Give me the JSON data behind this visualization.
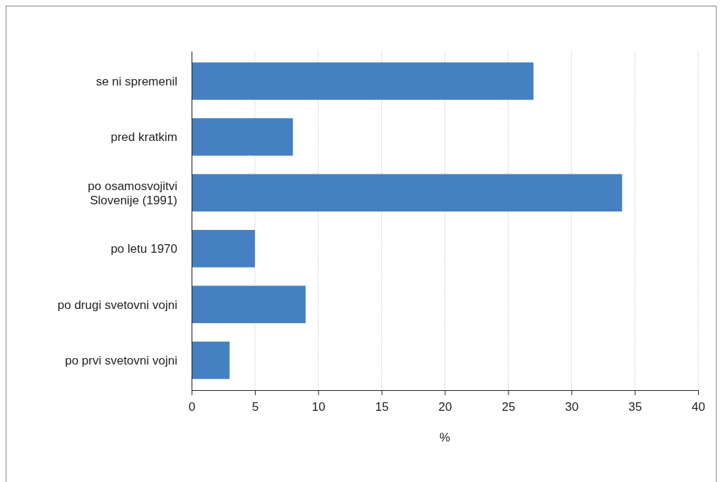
{
  "chart_data": {
    "type": "bar",
    "orientation": "horizontal",
    "xlabel": "%",
    "categories": [
      "se ni spremenil",
      "pred kratkim",
      "po osamosvojitvi\nSlovenije (1991)",
      "po letu 1970",
      "po drugi svetovni vojni",
      "po prvi svetovni vojni"
    ],
    "values": [
      27,
      8,
      34,
      5,
      9,
      3
    ],
    "color": "#4480c2",
    "xlim": [
      0,
      40
    ],
    "xticks": [
      0,
      5,
      10,
      15,
      20,
      25,
      30,
      35,
      40
    ],
    "grid": "x"
  }
}
